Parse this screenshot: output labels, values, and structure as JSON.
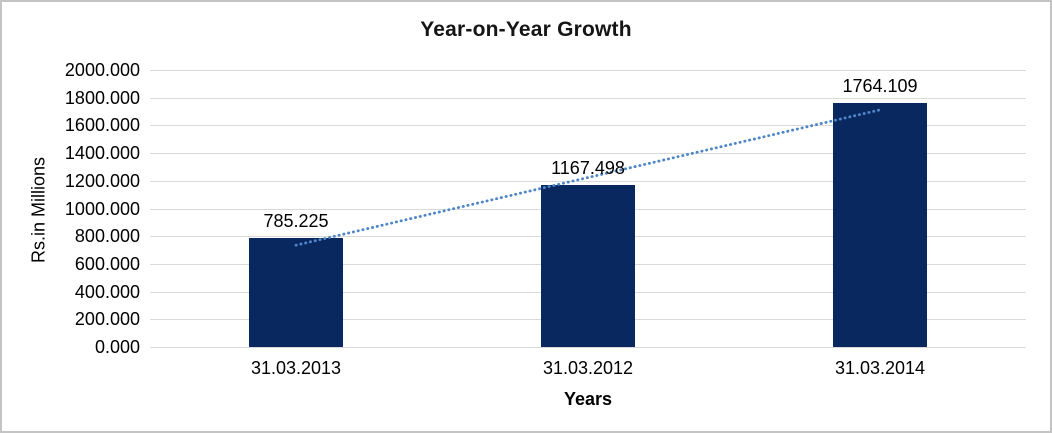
{
  "chart_data": {
    "type": "bar",
    "title": "Year-on-Year Growth",
    "xlabel": "Years",
    "ylabel": "Rs.in Millions",
    "categories": [
      "31.03.2013",
      "31.03.2012",
      "31.03.2014"
    ],
    "values": [
      785.225,
      1167.498,
      1764.109
    ],
    "value_labels": [
      "785.225",
      "1167.498",
      "1764.109"
    ],
    "ylim": [
      0,
      2000
    ],
    "ytick_step": 200,
    "ytick_labels": [
      "2000.000",
      "1800.000",
      "1600.000",
      "1400.000",
      "1200.000",
      "1000.000",
      "800.000",
      "600.000",
      "400.000",
      "200.000",
      "0.000"
    ],
    "grid": "horizontal",
    "legend": "none",
    "trendline": {
      "type": "linear",
      "style": "dotted",
      "start_value": 735,
      "end_value": 1712
    },
    "colors": {
      "bar": "#0a2860",
      "trendline": "#4e86c8",
      "gridline": "#d9d9d9",
      "text": "#000000",
      "window_border": "#c4c4c4",
      "background": "#ffffff"
    }
  }
}
